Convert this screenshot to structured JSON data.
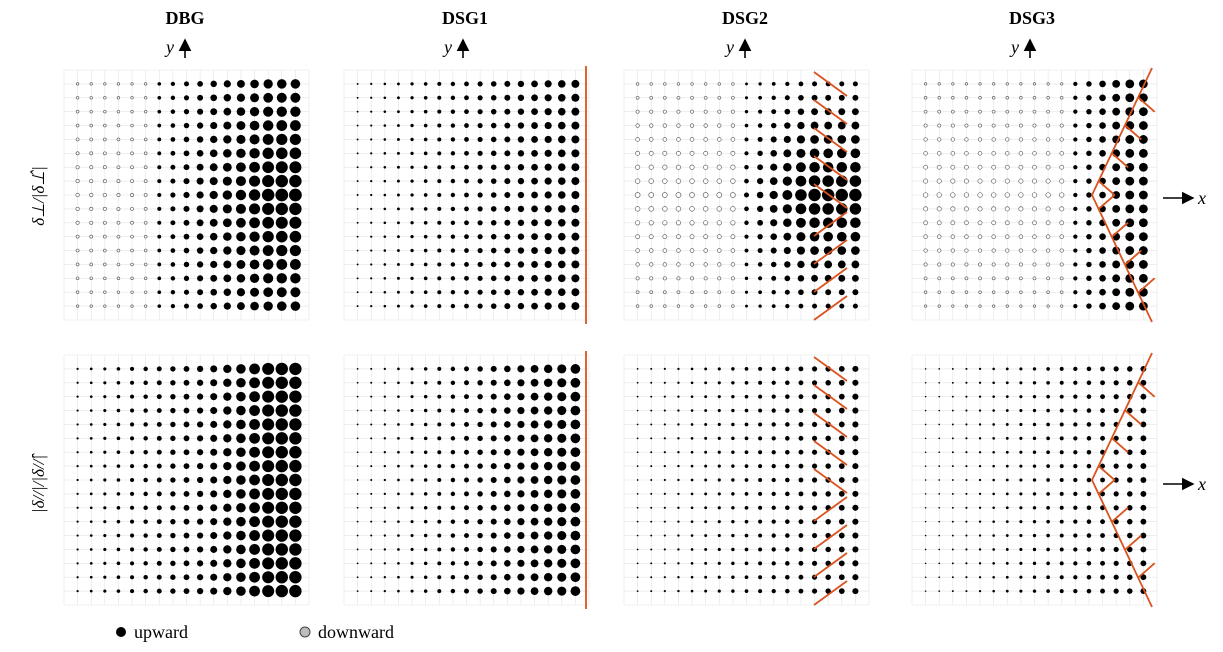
{
  "columns": [
    {
      "title": "DBG",
      "axis_y": "y"
    },
    {
      "title": "DSG1",
      "axis_y": "y"
    },
    {
      "title": "DSG2",
      "axis_y": "y"
    },
    {
      "title": "DSG3",
      "axis_y": "y"
    }
  ],
  "rows": [
    {
      "label": "δ⊥/|δ⊥̂|",
      "axis_x": "x"
    },
    {
      "label": "|δ//|/|δ//̂|",
      "axis_x": "x"
    }
  ],
  "legend": {
    "upward": "upward",
    "downward": "downward"
  },
  "colors": {
    "upward": "#000000",
    "downward": "#bdbdbd",
    "boundary": "#d9541e",
    "grid": "#e3e3e3"
  }
}
